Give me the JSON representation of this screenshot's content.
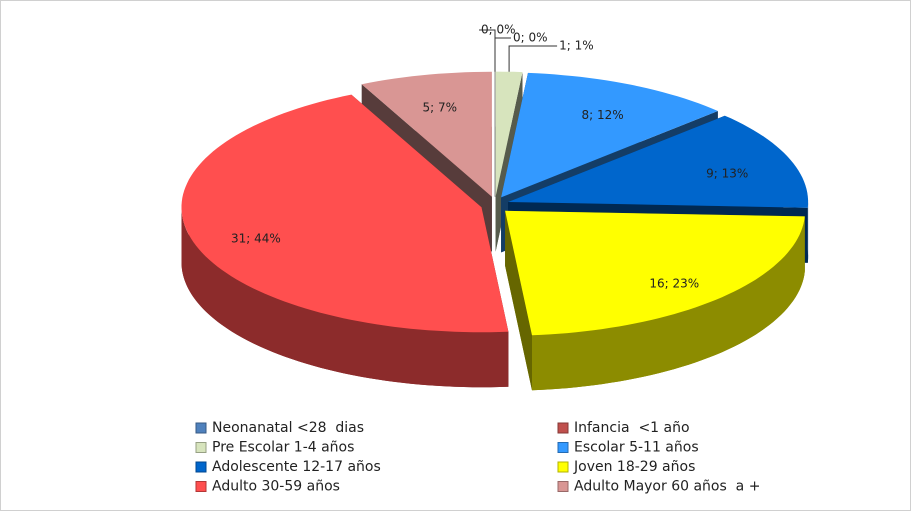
{
  "chart_data": {
    "type": "pie",
    "categories": [
      "Neonanatal <28  dias",
      "Infancia  <1 año",
      "Pre Escolar 1-4 años",
      "Escolar 5-11 años",
      "Adolescente 12-17 años",
      "Joven 18-29 años",
      "Adulto 30-59 años",
      "Adulto Mayor 60 años  a +"
    ],
    "values": [
      0,
      0,
      1,
      8,
      9,
      16,
      31,
      5
    ],
    "value_labels": [
      "0; 0%",
      "0; 0%",
      "1; 1%",
      "8; 12%",
      "9; 13%",
      "16; 23%",
      "31; 44%",
      "5; 7%"
    ],
    "colors": [
      "#4f81bd",
      "#c0504d",
      "#d7e4bd",
      "#3399ff",
      "#0066cc",
      "#ffff00",
      "#ff4f4f",
      "#d99694"
    ],
    "legend": "bottom"
  }
}
